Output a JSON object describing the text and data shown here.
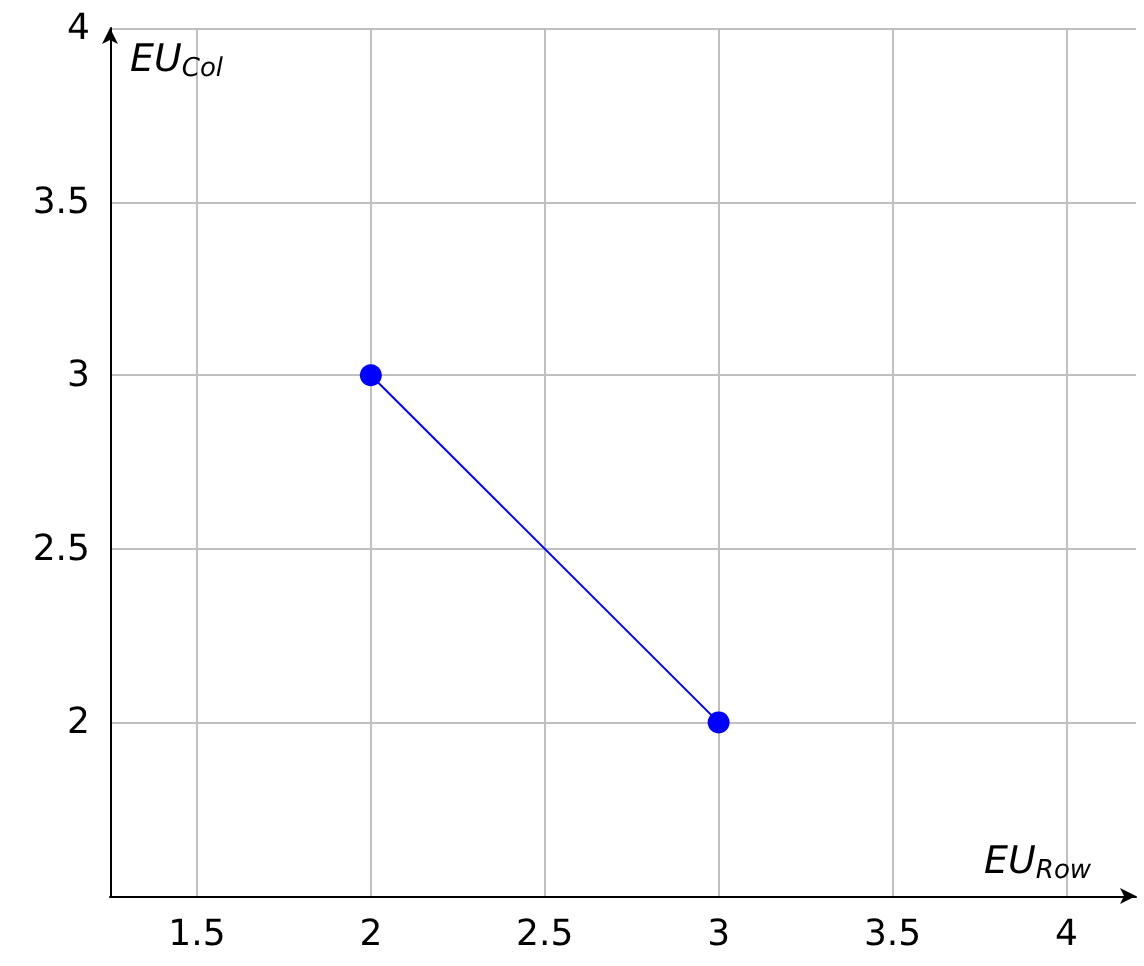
{
  "chart_data": {
    "type": "line",
    "xlabel": "EU$_{Row}$",
    "ylabel": "EU$_{Col}$",
    "x": [
      2,
      3
    ],
    "series": [
      {
        "color": "#0000ff",
        "values": [
          3,
          2
        ]
      }
    ],
    "xlim": [
      1.25,
      4.2
    ],
    "ylim": [
      1.5,
      4
    ],
    "xticks": [
      1.5,
      2,
      2.5,
      3,
      3.5,
      4
    ],
    "yticks": [
      2,
      2.5,
      3,
      3.5,
      4
    ],
    "grid": true,
    "marker": "circle",
    "line_style": "solid"
  }
}
